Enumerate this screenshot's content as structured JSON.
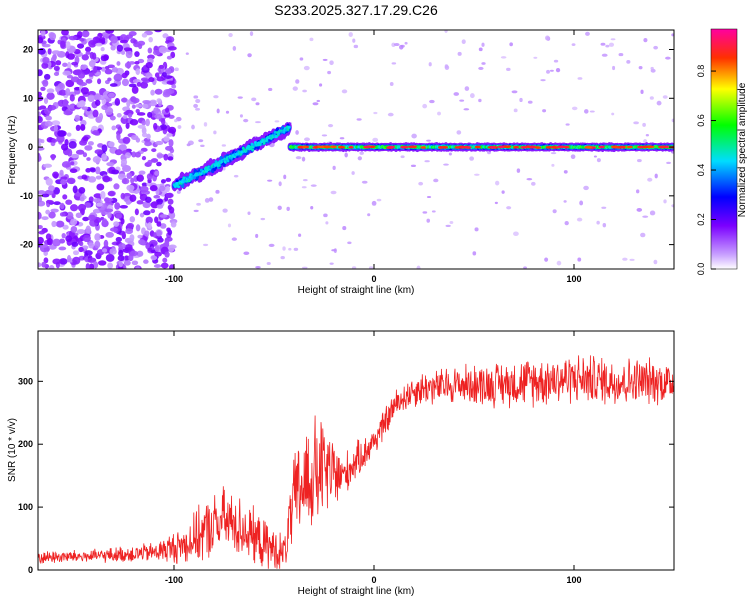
{
  "title": "S233.2025.327.17.29.C26",
  "chart_data": [
    {
      "type": "heatmap",
      "name": "spectrogram",
      "xlabel": "Height of straight line (km)",
      "ylabel": "Frequency (Hz)",
      "xlim": [
        -168,
        150
      ],
      "ylim": [
        -25,
        24
      ],
      "xticks": [
        -100,
        0,
        100
      ],
      "xtick_labels": [
        "-100",
        "0",
        "100"
      ],
      "yticks": [
        -20,
        -10,
        0,
        10,
        20
      ],
      "ytick_labels": [
        "-20",
        "-10",
        "0",
        "10",
        "20"
      ],
      "ridge_segments": [
        {
          "x_start": -100,
          "x_end": -42,
          "freq_start": -8,
          "freq_end": 4,
          "peak_amplitude": 0.45
        },
        {
          "x_start": -42,
          "x_end": 150,
          "freq_start": 0,
          "freq_end": 0,
          "peak_amplitude": 0.9
        }
      ],
      "noise_region": {
        "x_start": -168,
        "x_end": -100,
        "amplitude": 0.15
      },
      "colorbar": {
        "label": "Normalized spectral amplitude",
        "range": [
          0,
          0.97
        ],
        "ticks": [
          0.0,
          0.2,
          0.4,
          0.6,
          0.8
        ],
        "tick_labels": [
          "0.0",
          "0.2",
          "0.4",
          "0.6",
          "0.8"
        ],
        "colors": [
          "#ffffff",
          "#9b30ff",
          "#0000ff",
          "#00ffff",
          "#00ff00",
          "#ffff00",
          "#ff0000",
          "#ff00ff"
        ]
      }
    },
    {
      "type": "line",
      "name": "snr",
      "xlabel": "Height of straight line (km)",
      "ylabel": "SNR (10 * v/v)",
      "xlim": [
        -168,
        150
      ],
      "ylim": [
        0,
        380
      ],
      "xticks": [
        -100,
        0,
        100
      ],
      "xtick_labels": [
        "-100",
        "0",
        "100"
      ],
      "yticks": [
        0,
        100,
        200,
        300
      ],
      "ytick_labels": [
        "0",
        "100",
        "200",
        "300"
      ],
      "color": "#ee2222",
      "x": [
        -168,
        -140,
        -110,
        -95,
        -85,
        -75,
        -65,
        -55,
        -45,
        -40,
        -35,
        -30,
        -25,
        -20,
        -15,
        -10,
        -5,
        0,
        5,
        10,
        15,
        20,
        25,
        30,
        40,
        60,
        80,
        100,
        120,
        140,
        150
      ],
      "mean": [
        20,
        22,
        28,
        40,
        60,
        80,
        65,
        40,
        25,
        110,
        140,
        150,
        160,
        150,
        150,
        170,
        185,
        205,
        230,
        260,
        275,
        285,
        290,
        290,
        295,
        295,
        300,
        305,
        300,
        300,
        298
      ],
      "spread": [
        12,
        12,
        18,
        35,
        55,
        60,
        55,
        45,
        35,
        80,
        100,
        110,
        90,
        70,
        40,
        35,
        30,
        28,
        28,
        28,
        28,
        30,
        32,
        32,
        35,
        40,
        45,
        45,
        45,
        42,
        40
      ]
    }
  ]
}
